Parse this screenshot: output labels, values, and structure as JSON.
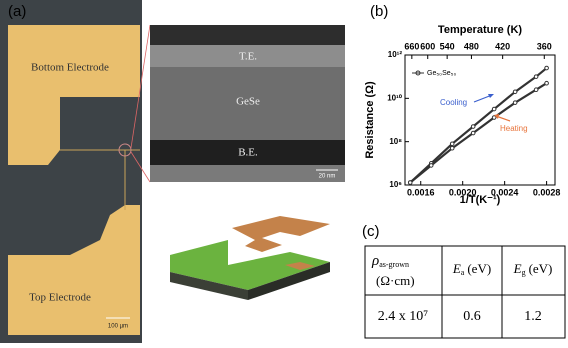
{
  "panel_labels": [
    "(a)",
    "(b)",
    "(c)"
  ],
  "micrograph": {
    "top_label": "Bottom Electrode",
    "bottom_label": "Top Electrode",
    "scale_bar": "100 µm"
  },
  "tem": {
    "layers": [
      "T.E.",
      "GeSe",
      "B.E."
    ],
    "scale_bar": "20 nm"
  },
  "table": {
    "header": [
      {
        "symbol": "ρ",
        "subscript": "as-grown",
        "unit": "(Ω·cm)"
      },
      {
        "symbol": "E",
        "subscript": "a",
        "unit": "(eV)"
      },
      {
        "symbol": "E",
        "subscript": "g",
        "unit": "(eV)"
      }
    ],
    "rows": [
      [
        "2.4 x 10⁷",
        "0.6",
        "1.2"
      ]
    ]
  },
  "chart_data": {
    "type": "line",
    "x_label": "1/T(K⁻¹)",
    "y_label": "Resistance (Ω)",
    "x2_label": "Temperature (K)",
    "legend": "Ge₅₀Se₅₀",
    "log_y": true,
    "color": "#333333",
    "x": [
      0.0015,
      0.0017,
      0.0019,
      0.0021,
      0.0023,
      0.0025,
      0.0027,
      0.0028
    ],
    "series": [
      {
        "name": "Cooling",
        "color": "#3a5fcd",
        "values": [
          1300000.0,
          10000000.0,
          80000000.0,
          500000000.0,
          3200000000.0,
          20000000000.0,
          100000000000.0,
          250000000000.0
        ]
      },
      {
        "name": "Heating",
        "color": "#e8743b",
        "values": [
          1300000.0,
          8000000.0,
          50000000.0,
          250000000.0,
          1300000000.0,
          6300000000.0,
          25000000000.0,
          50000000000.0
        ]
      }
    ],
    "xlim": [
      0.00145,
      0.00288
    ],
    "ylim": [
      1000000.0,
      1000000000000.0
    ],
    "xticks": [
      0.0016,
      {
        "value": 0.002,
        "label": "0.0020"
      },
      0.0024,
      0.0028
    ],
    "x2ticks": [
      660,
      600,
      540,
      480,
      420,
      360
    ],
    "yticks": [
      {
        "value": 1000000.0,
        "label": "10⁶"
      },
      {
        "value": 100000000.0,
        "label": "10⁸"
      },
      {
        "value": 10000000000.0,
        "label": "10¹⁰"
      },
      {
        "value": 1000000000000.0,
        "label": "10¹²"
      }
    ]
  }
}
